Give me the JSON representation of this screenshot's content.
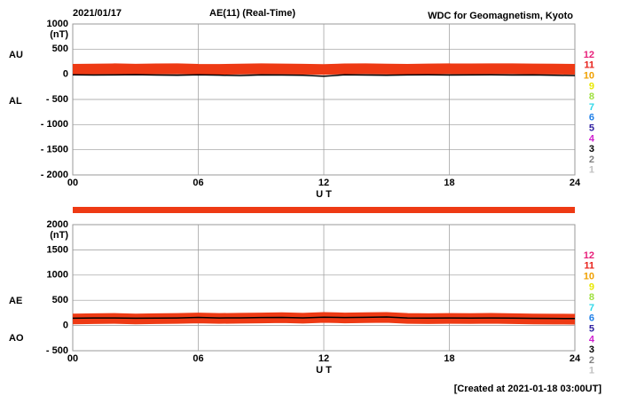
{
  "header": {
    "date": "2021/01/17",
    "title": "AE(11) (Real-Time)",
    "source": "WDC for Geomagnetism, Kyoto",
    "footer": "[Created at 2021-01-18 03:00UT]",
    "station_legend": [
      {
        "label": "12",
        "color": "#e8207a"
      },
      {
        "label": "11",
        "color": "#e8201a"
      },
      {
        "label": "10",
        "color": "#f0a000"
      },
      {
        "label": "9",
        "color": "#e8e800"
      },
      {
        "label": "8",
        "color": "#a0e040"
      },
      {
        "label": "7",
        "color": "#30d8e8"
      },
      {
        "label": "6",
        "color": "#2080e8"
      },
      {
        "label": "5",
        "color": "#3020a0"
      },
      {
        "label": "4",
        "color": "#d020d0"
      },
      {
        "label": "3",
        "color": "#000000"
      },
      {
        "label": "2",
        "color": "#808080"
      },
      {
        "label": "1",
        "color": "#c0c0c0"
      }
    ]
  },
  "chart_data": [
    {
      "type": "line",
      "y_unit": "(nT)",
      "x_label": "U T",
      "x": [
        0,
        1,
        2,
        3,
        4,
        5,
        6,
        7,
        8,
        9,
        10,
        11,
        12,
        13,
        14,
        15,
        16,
        17,
        18,
        19,
        20,
        21,
        22,
        23,
        24
      ],
      "xlim": [
        0,
        24
      ],
      "xticks": [
        {
          "value": 0,
          "label": "00"
        },
        {
          "value": 6,
          "label": "06"
        },
        12,
        18,
        24
      ],
      "ylim": [
        -2000,
        1000
      ],
      "yticks": [
        1000,
        500,
        0,
        {
          "value": -500,
          "label": "- 500"
        },
        {
          "value": -1000,
          "label": "- 1000"
        },
        {
          "value": -1500,
          "label": "- 1500"
        },
        {
          "value": -2000,
          "label": "- 2000"
        }
      ],
      "grid": true,
      "series": [
        {
          "name": "AU",
          "color": "#ee3a14",
          "values": [
            100,
            105,
            110,
            102,
            108,
            112,
            100,
            98,
            104,
            110,
            106,
            102,
            95,
            108,
            110,
            104,
            100,
            106,
            110,
            108,
            112,
            110,
            106,
            104,
            100
          ]
        },
        {
          "name": "AL",
          "color": "#000000",
          "values": [
            -10,
            -15,
            -12,
            -8,
            -14,
            -20,
            -10,
            -18,
            -25,
            -12,
            -15,
            -20,
            -40,
            -10,
            -15,
            -20,
            -12,
            -10,
            -15,
            -12,
            -10,
            -14,
            -12,
            -20,
            -25
          ]
        }
      ]
    },
    {
      "type": "line",
      "y_unit": "(nT)",
      "x_label": "U T",
      "x": [
        0,
        1,
        2,
        3,
        4,
        5,
        6,
        7,
        8,
        9,
        10,
        11,
        12,
        13,
        14,
        15,
        16,
        17,
        18,
        19,
        20,
        21,
        22,
        23,
        24
      ],
      "xlim": [
        0,
        24
      ],
      "xticks": [
        {
          "value": 0,
          "label": "00"
        },
        {
          "value": 6,
          "label": "06"
        },
        12,
        18,
        24
      ],
      "ylim": [
        -500,
        2000
      ],
      "yticks": [
        2000,
        1500,
        1000,
        500,
        0,
        {
          "value": -500,
          "label": "- 500"
        }
      ],
      "grid": true,
      "series": [
        {
          "name": "AE",
          "color": "#ee3a14",
          "values": [
            130,
            135,
            140,
            130,
            135,
            140,
            150,
            140,
            145,
            150,
            155,
            145,
            160,
            150,
            155,
            160,
            140,
            135,
            140,
            138,
            142,
            135,
            130,
            128,
            125
          ]
        },
        {
          "name": "AO",
          "color": "#000000",
          "values": [
            145,
            150,
            150,
            145,
            148,
            150,
            160,
            150,
            152,
            158,
            160,
            152,
            165,
            158,
            162,
            168,
            150,
            148,
            150,
            148,
            150,
            146,
            142,
            140,
            138
          ]
        }
      ]
    }
  ]
}
